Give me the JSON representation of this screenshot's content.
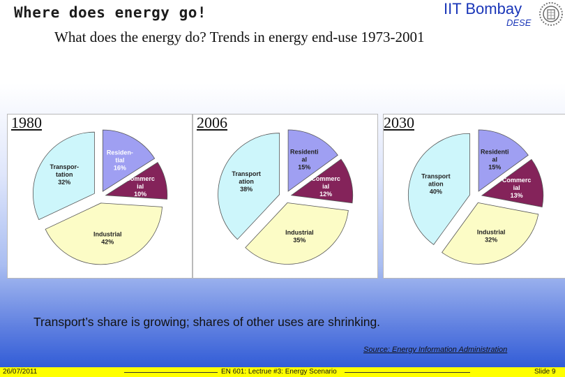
{
  "header": {
    "title": "Where does energy go!",
    "institute": "IIT Bombay",
    "department": "DESE",
    "subtitle": "What does the energy do?   Trends in energy end-use 1973-2001"
  },
  "colors": {
    "residential": "#9f9ff2",
    "commercial": "#84235a",
    "transportation": "#cdf6fb",
    "industrial": "#fcfcc6"
  },
  "chart_data": [
    {
      "type": "pie",
      "year_label": "1980",
      "slices": [
        {
          "label": "Residen-tial",
          "label_lines": [
            "Residen-",
            "tial"
          ],
          "value": 16,
          "value_label": "16%",
          "color_key": "residential",
          "text_color": "#ffffff"
        },
        {
          "label": "Commercial",
          "label_lines": [
            "Commerc",
            "ial"
          ],
          "value": 10,
          "value_label": "10%",
          "color_key": "commercial",
          "text_color": "#ffffff"
        },
        {
          "label": "Industrial",
          "label_lines": [
            "Industrial"
          ],
          "value": 42,
          "value_label": "42%",
          "color_key": "industrial",
          "text_color": "#222222"
        },
        {
          "label": "Transpor-tation",
          "label_lines": [
            "Transpor-",
            "tation"
          ],
          "value": 32,
          "value_label": "32%",
          "color_key": "transportation",
          "text_color": "#222222"
        }
      ]
    },
    {
      "type": "pie",
      "year_label": "2006",
      "slices": [
        {
          "label": "Residential",
          "label_lines": [
            "Residenti",
            "al"
          ],
          "value": 15,
          "value_label": "15%",
          "color_key": "residential",
          "text_color": "#222222"
        },
        {
          "label": "Commercial",
          "label_lines": [
            "Commerc",
            "ial"
          ],
          "value": 12,
          "value_label": "12%",
          "color_key": "commercial",
          "text_color": "#ffffff"
        },
        {
          "label": "Industrial",
          "label_lines": [
            "Industrial"
          ],
          "value": 35,
          "value_label": "35%",
          "color_key": "industrial",
          "text_color": "#222222"
        },
        {
          "label": "Transportation",
          "label_lines": [
            "Transport",
            "ation"
          ],
          "value": 38,
          "value_label": "38%",
          "color_key": "transportation",
          "text_color": "#222222"
        }
      ]
    },
    {
      "type": "pie",
      "year_label": "2030",
      "slices": [
        {
          "label": "Residential",
          "label_lines": [
            "Residenti",
            "al"
          ],
          "value": 15,
          "value_label": "15%",
          "color_key": "residential",
          "text_color": "#222222"
        },
        {
          "label": "Commercial",
          "label_lines": [
            "Commerc",
            "ial"
          ],
          "value": 13,
          "value_label": "13%",
          "color_key": "commercial",
          "text_color": "#ffffff"
        },
        {
          "label": "Industrial",
          "label_lines": [
            "Industrial"
          ],
          "value": 32,
          "value_label": "32%",
          "color_key": "industrial",
          "text_color": "#222222"
        },
        {
          "label": "Transportation",
          "label_lines": [
            "Transport",
            "ation"
          ],
          "value": 40,
          "value_label": "40%",
          "color_key": "transportation",
          "text_color": "#222222"
        }
      ]
    }
  ],
  "note": "Transport’s share is growing;  shares of other uses are shrinking.",
  "source": "Source: Energy Information Administration",
  "footer": {
    "date": "26/07/2011",
    "course": "EN 601: Lectrue #3: Energy Scenario",
    "slide": "Slide 9"
  }
}
